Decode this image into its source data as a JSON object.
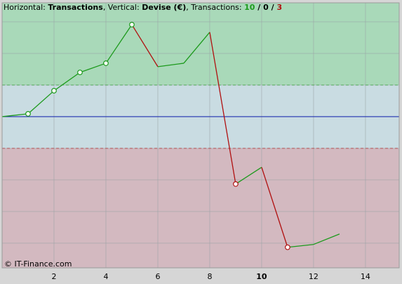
{
  "chart_data": {
    "type": "line",
    "title_parts": [
      {
        "text": "Horizontal: ",
        "bold": false,
        "color": "#000000"
      },
      {
        "text": "Transactions",
        "bold": true,
        "color": "#000000"
      },
      {
        "text": ", Vertical: ",
        "bold": false,
        "color": "#000000"
      },
      {
        "text": "Devise (€)",
        "bold": true,
        "color": "#000000"
      },
      {
        "text": ", Transactions: ",
        "bold": false,
        "color": "#000000"
      },
      {
        "text": "10",
        "bold": true,
        "color": "#1c9a1c"
      },
      {
        "text": " / ",
        "bold": true,
        "color": "#000000"
      },
      {
        "text": "0",
        "bold": true,
        "color": "#000000"
      },
      {
        "text": " / ",
        "bold": true,
        "color": "#000000"
      },
      {
        "text": "3",
        "bold": true,
        "color": "#b01010"
      }
    ],
    "copyright": "© IT-Finance.com",
    "x": [
      0,
      1,
      2,
      3,
      4,
      5,
      6,
      7,
      8,
      9,
      10,
      11,
      12,
      13
    ],
    "values": [
      0,
      0.09,
      0.82,
      1.4,
      1.69,
      2.91,
      1.58,
      1.69,
      2.67,
      -2.13,
      -1.6,
      -4.13,
      -4.04,
      -3.71
    ],
    "markers": [
      1,
      2,
      3,
      4,
      5,
      9,
      11
    ],
    "up_color": "#1c9a1c",
    "down_color": "#b01010",
    "baseline_color": "#1f2fb0",
    "upper_band": 1,
    "lower_band": -1,
    "upper_color": "#a9d9b9",
    "middle_color": "#c9dce2",
    "lower_color": "#d3b9c0",
    "xlim": [
      0,
      15.3
    ],
    "xticks": [
      2,
      4,
      6,
      8,
      10,
      12,
      14
    ],
    "emphasized_xtick": 10,
    "ylim": [
      -4.78,
      3.6
    ],
    "yticks": [
      -4,
      -3,
      -2,
      -1,
      0,
      1,
      2,
      3
    ],
    "grid": true
  }
}
